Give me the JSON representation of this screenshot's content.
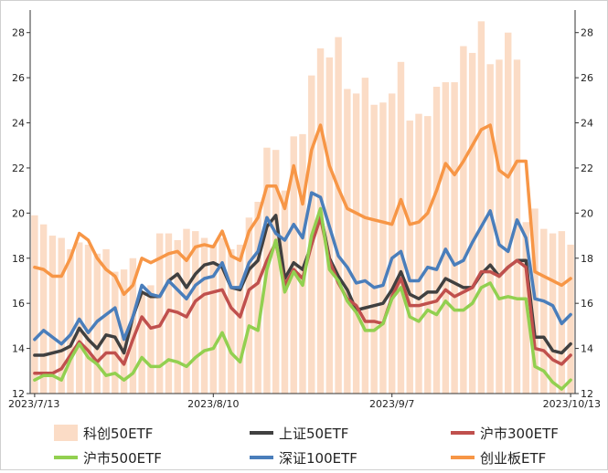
{
  "chart_data": {
    "type": "bar+line",
    "x_dates": [
      "2023/7/13",
      "2023/7/14",
      "2023/7/17",
      "2023/7/18",
      "2023/7/19",
      "2023/7/20",
      "2023/7/21",
      "2023/7/24",
      "2023/7/25",
      "2023/7/26",
      "2023/7/27",
      "2023/7/28",
      "2023/7/31",
      "2023/8/1",
      "2023/8/2",
      "2023/8/3",
      "2023/8/4",
      "2023/8/7",
      "2023/8/8",
      "2023/8/9",
      "2023/8/10",
      "2023/8/11",
      "2023/8/14",
      "2023/8/15",
      "2023/8/16",
      "2023/8/17",
      "2023/8/18",
      "2023/8/21",
      "2023/8/22",
      "2023/8/23",
      "2023/8/24",
      "2023/8/25",
      "2023/8/28",
      "2023/8/29",
      "2023/8/30",
      "2023/8/31",
      "2023/9/1",
      "2023/9/4",
      "2023/9/5",
      "2023/9/6",
      "2023/9/7",
      "2023/9/8",
      "2023/9/11",
      "2023/9/12",
      "2023/9/13",
      "2023/9/14",
      "2023/9/15",
      "2023/9/18",
      "2023/9/19",
      "2023/9/20",
      "2023/9/21",
      "2023/9/22",
      "2023/9/25",
      "2023/9/26",
      "2023/9/27",
      "2023/9/28",
      "2023/10/9",
      "2023/10/10",
      "2023/10/11",
      "2023/10/12",
      "2023/10/13"
    ],
    "x_tick_labels": [
      "2023/7/13",
      "2023/8/10",
      "2023/9/7",
      "2023/10/13"
    ],
    "ylim_left": [
      12,
      29
    ],
    "ylim_right": [
      12,
      29
    ],
    "yticks": [
      12,
      14,
      16,
      18,
      20,
      22,
      24,
      26,
      28
    ],
    "grid": false,
    "legend_position": "bottom",
    "series": [
      {
        "name": "科创50ETF",
        "type": "bar",
        "color": "#fbdcc6",
        "values": [
          19.9,
          19.5,
          19.0,
          18.9,
          18.4,
          18.7,
          18.6,
          18.2,
          18.4,
          17.4,
          17.5,
          18.0,
          16.5,
          16.8,
          19.1,
          19.1,
          18.8,
          19.3,
          19.2,
          18.9,
          18.6,
          18.9,
          18.4,
          18.6,
          19.8,
          20.5,
          22.9,
          22.8,
          21.0,
          23.4,
          23.5,
          26.1,
          27.3,
          26.9,
          27.8,
          25.5,
          25.3,
          26.0,
          24.8,
          24.9,
          25.3,
          26.7,
          24.1,
          24.4,
          24.3,
          25.6,
          25.8,
          25.8,
          27.4,
          27.1,
          28.5,
          26.6,
          26.8,
          28.0,
          26.8,
          19.6,
          20.2,
          19.3,
          19.1,
          19.2,
          18.6
        ]
      },
      {
        "name": "上证50ETF",
        "type": "line",
        "color": "#404040",
        "values": [
          13.7,
          13.7,
          13.8,
          13.9,
          14.1,
          14.9,
          14.4,
          14.0,
          14.6,
          14.5,
          13.8,
          15.4,
          16.5,
          16.3,
          16.3,
          17.0,
          17.3,
          16.7,
          17.3,
          17.7,
          17.8,
          17.6,
          16.7,
          16.6,
          17.5,
          17.9,
          19.4,
          19.9,
          17.1,
          17.8,
          17.5,
          18.6,
          20.0,
          18.0,
          17.2,
          16.6,
          15.7,
          15.8,
          15.9,
          16.0,
          16.6,
          17.4,
          16.4,
          16.2,
          16.5,
          16.5,
          17.1,
          16.9,
          16.7,
          16.7,
          17.3,
          17.7,
          17.2,
          17.6,
          17.9,
          17.9,
          14.5,
          14.5,
          13.9,
          13.8,
          14.2
        ]
      },
      {
        "name": "沪市300ETF",
        "type": "line",
        "color": "#c0504d",
        "values": [
          12.9,
          12.9,
          12.9,
          13.1,
          13.7,
          14.3,
          13.9,
          13.4,
          13.8,
          13.8,
          13.3,
          14.4,
          15.4,
          14.9,
          15.0,
          15.7,
          15.6,
          15.4,
          16.1,
          16.4,
          16.5,
          16.6,
          15.8,
          15.4,
          16.6,
          16.9,
          17.9,
          18.7,
          16.8,
          17.5,
          17.1,
          18.6,
          19.8,
          17.9,
          16.9,
          16.2,
          15.9,
          15.2,
          15.2,
          15.1,
          16.3,
          17.1,
          15.9,
          15.9,
          16.0,
          16.1,
          16.6,
          16.3,
          16.5,
          16.7,
          17.4,
          17.4,
          17.2,
          17.6,
          17.9,
          17.6,
          14.0,
          13.9,
          13.5,
          13.3,
          13.7
        ]
      },
      {
        "name": "沪市500ETF",
        "type": "line",
        "color": "#92d050",
        "values": [
          12.6,
          12.8,
          12.8,
          12.6,
          13.5,
          14.2,
          13.6,
          13.3,
          12.8,
          12.9,
          12.6,
          12.9,
          13.6,
          13.2,
          13.2,
          13.5,
          13.4,
          13.2,
          13.6,
          13.9,
          14.0,
          14.7,
          13.8,
          13.4,
          15.0,
          14.8,
          17.5,
          18.8,
          16.5,
          17.4,
          16.8,
          19.0,
          20.2,
          17.5,
          17.0,
          16.1,
          15.6,
          14.8,
          14.8,
          15.1,
          16.2,
          16.7,
          15.4,
          15.2,
          15.7,
          15.5,
          16.1,
          15.7,
          15.7,
          16.0,
          16.7,
          16.9,
          16.2,
          16.3,
          16.2,
          16.2,
          13.2,
          13.0,
          12.5,
          12.2,
          12.6
        ]
      },
      {
        "name": "深证100ETF",
        "type": "line",
        "color": "#4a7ebb",
        "values": [
          14.4,
          14.8,
          14.5,
          14.2,
          14.6,
          15.3,
          14.7,
          15.2,
          15.5,
          15.8,
          14.4,
          15.4,
          16.8,
          16.4,
          16.3,
          17.0,
          16.6,
          16.2,
          16.8,
          17.1,
          17.2,
          17.8,
          16.7,
          16.7,
          17.8,
          18.3,
          19.8,
          19.1,
          18.8,
          19.5,
          18.9,
          20.9,
          20.7,
          19.4,
          18.1,
          17.6,
          16.9,
          17.0,
          16.7,
          16.8,
          18.0,
          18.3,
          17.0,
          17.0,
          17.6,
          17.5,
          18.4,
          17.7,
          17.9,
          18.7,
          19.4,
          20.1,
          18.6,
          18.3,
          19.7,
          18.9,
          16.2,
          16.1,
          15.9,
          15.1,
          15.5
        ]
      },
      {
        "name": "创业板ETF",
        "type": "line",
        "color": "#f79646",
        "values": [
          17.6,
          17.5,
          17.2,
          17.2,
          18.0,
          19.1,
          18.8,
          18.0,
          17.5,
          17.2,
          16.4,
          16.8,
          18.0,
          17.8,
          18.0,
          18.2,
          18.3,
          17.9,
          18.5,
          18.6,
          18.5,
          19.2,
          18.1,
          17.9,
          19.2,
          19.8,
          21.2,
          21.2,
          20.2,
          22.1,
          20.4,
          22.8,
          23.9,
          22.1,
          21.1,
          20.2,
          20.0,
          19.8,
          19.7,
          19.6,
          19.5,
          20.6,
          19.5,
          19.6,
          20.0,
          21.0,
          22.2,
          21.7,
          22.3,
          23.0,
          23.7,
          23.9,
          21.9,
          21.6,
          22.3,
          22.3,
          17.4,
          17.2,
          17.0,
          16.8,
          17.1
        ]
      }
    ]
  }
}
